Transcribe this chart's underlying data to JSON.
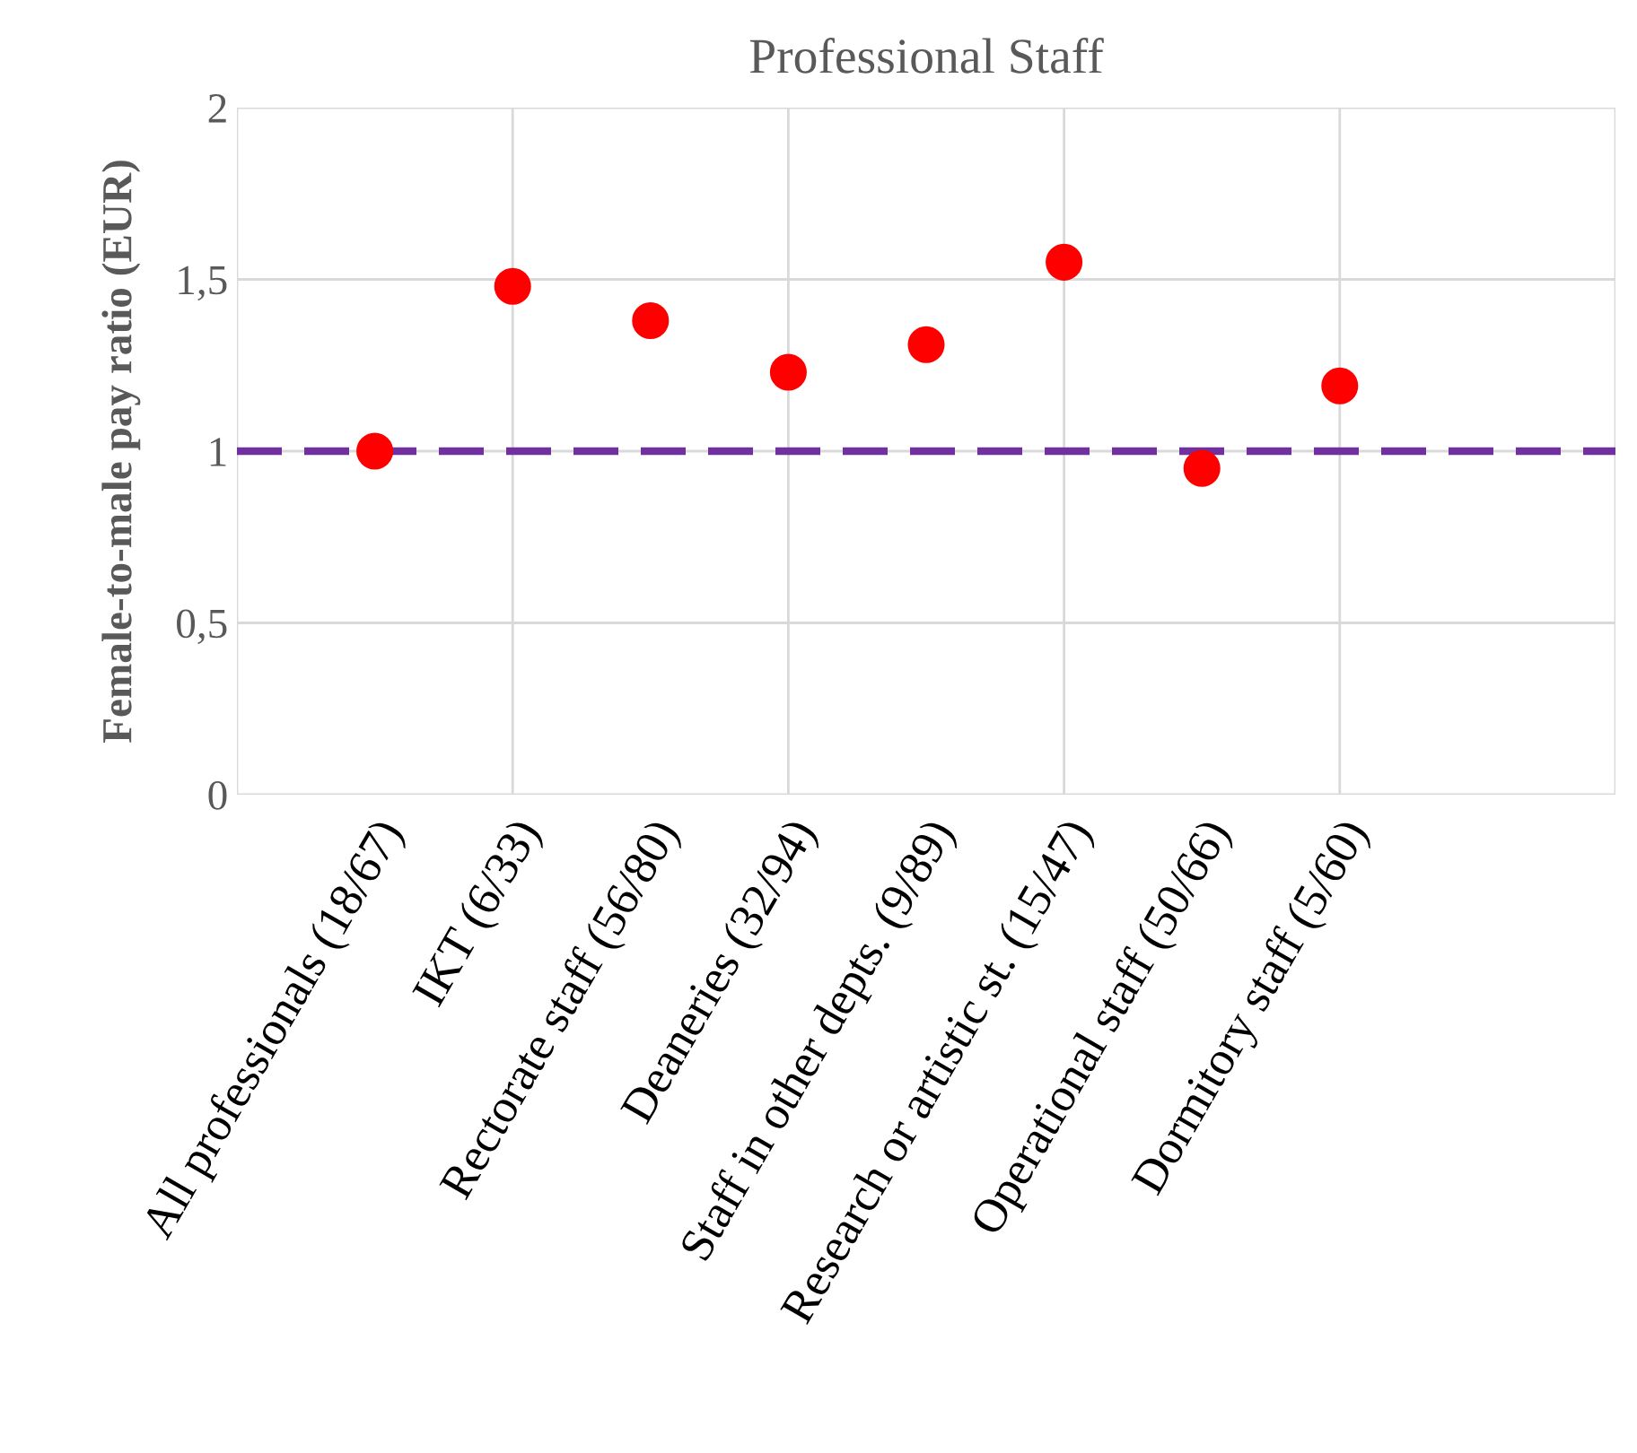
{
  "chart_data": {
    "type": "scatter",
    "title": "Professional Staff",
    "ylabel": "Female-to-male pay ratio (EUR)",
    "categories": [
      "All professionals (18/67)",
      "IKT (6/33)",
      "Rectorate staff (56/80)",
      "Deaneries (32/94)",
      "Staff in other depts. (9/89)",
      "Research or artistic st. (15/47)",
      "Operational staff (50/66)",
      "Dormitory staff (5/60)"
    ],
    "series": [
      {
        "color": "#ff0000",
        "values": [
          1.0,
          1.48,
          1.38,
          1.23,
          1.31,
          1.55,
          0.95,
          1.19
        ]
      }
    ],
    "ylim": [
      0,
      2
    ],
    "yticks": [
      0,
      {
        "value": 0.5,
        "label": "0,5"
      },
      1,
      {
        "value": 1.5,
        "label": "1,5"
      },
      2
    ],
    "ref_lines": [
      {
        "axis": "y",
        "value": 1,
        "color": "#7030a0",
        "line_style": "dashed"
      }
    ],
    "grid": true,
    "marker": "circle",
    "legend": false
  }
}
